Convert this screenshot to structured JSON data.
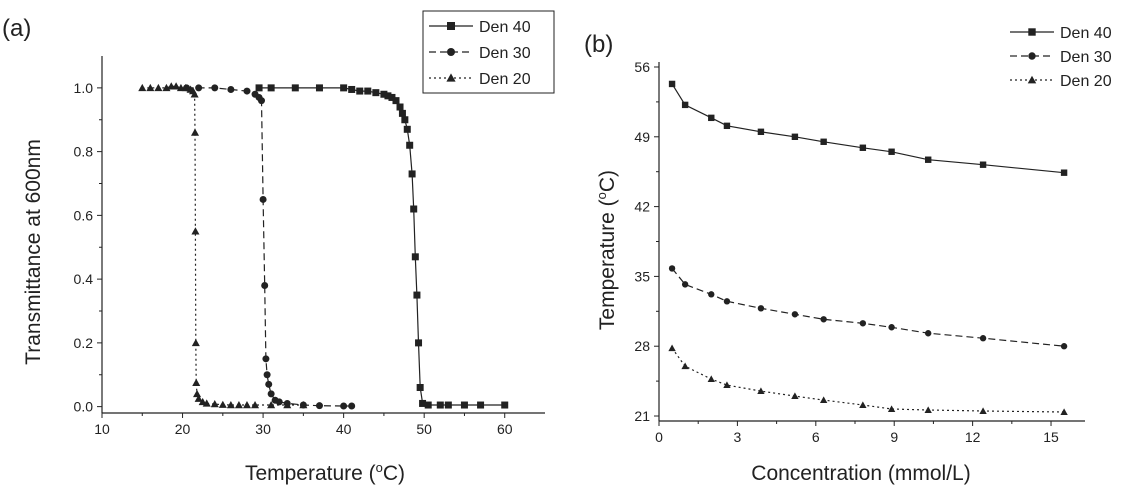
{
  "chart_data": [
    {
      "panel": "(a)",
      "type": "line",
      "xlabel": "Temperature (",
      "xlabel_sup": "o",
      "xlabel_tail": "C)",
      "ylabel": "Transmittance at 600nm",
      "xlim": [
        10,
        65
      ],
      "ylim": [
        -0.02,
        1.1
      ],
      "xticks": [
        10,
        20,
        30,
        40,
        50,
        60
      ],
      "yticks": [
        0.0,
        0.2,
        0.4,
        0.6,
        0.8,
        1.0
      ],
      "ytick_labels": [
        "0.0",
        "0.2",
        "0.4",
        "0.6",
        "0.8",
        "1.0"
      ],
      "legend_position": "top-right",
      "series": [
        {
          "name": "Den 40",
          "marker": "square",
          "dash": "solid",
          "points": [
            [
              29.5,
              1.0
            ],
            [
              31,
              1.0
            ],
            [
              34,
              1.0
            ],
            [
              37,
              1.0
            ],
            [
              40,
              1.0
            ],
            [
              41,
              0.995
            ],
            [
              42,
              0.99
            ],
            [
              43,
              0.99
            ],
            [
              44,
              0.985
            ],
            [
              45,
              0.98
            ],
            [
              45.5,
              0.975
            ],
            [
              46,
              0.97
            ],
            [
              46.5,
              0.96
            ],
            [
              47,
              0.94
            ],
            [
              47.3,
              0.92
            ],
            [
              47.6,
              0.9
            ],
            [
              47.9,
              0.87
            ],
            [
              48.2,
              0.82
            ],
            [
              48.5,
              0.73
            ],
            [
              48.7,
              0.62
            ],
            [
              48.9,
              0.47
            ],
            [
              49.1,
              0.35
            ],
            [
              49.3,
              0.2
            ],
            [
              49.5,
              0.06
            ],
            [
              49.8,
              0.01
            ],
            [
              50.5,
              0.005
            ],
            [
              52,
              0.005
            ],
            [
              53,
              0.005
            ],
            [
              55,
              0.005
            ],
            [
              57,
              0.005
            ],
            [
              60,
              0.005
            ]
          ]
        },
        {
          "name": "Den 30",
          "marker": "circle",
          "dash": "dashed",
          "points": [
            [
              20.5,
              1.0
            ],
            [
              22,
              1.0
            ],
            [
              24,
              1.0
            ],
            [
              26,
              0.995
            ],
            [
              28,
              0.99
            ],
            [
              29,
              0.98
            ],
            [
              29.5,
              0.97
            ],
            [
              29.8,
              0.96
            ],
            [
              30.0,
              0.65
            ],
            [
              30.2,
              0.38
            ],
            [
              30.35,
              0.15
            ],
            [
              30.5,
              0.1
            ],
            [
              30.7,
              0.07
            ],
            [
              31,
              0.04
            ],
            [
              31.5,
              0.02
            ],
            [
              32,
              0.015
            ],
            [
              33,
              0.01
            ],
            [
              35,
              0.005
            ],
            [
              37,
              0.003
            ],
            [
              40,
              0.002
            ],
            [
              41,
              0.002
            ]
          ]
        },
        {
          "name": "Den 20",
          "marker": "triangle",
          "dash": "dotted",
          "points": [
            [
              15,
              1.0
            ],
            [
              16,
              1.0
            ],
            [
              17,
              1.0
            ],
            [
              18,
              1.0
            ],
            [
              18.6,
              1.005
            ],
            [
              19.2,
              1.005
            ],
            [
              19.8,
              1.0
            ],
            [
              20.4,
              1.0
            ],
            [
              21.0,
              0.995
            ],
            [
              21.3,
              0.99
            ],
            [
              21.5,
              0.98
            ],
            [
              21.55,
              0.86
            ],
            [
              21.6,
              0.55
            ],
            [
              21.65,
              0.2
            ],
            [
              21.7,
              0.075
            ],
            [
              21.8,
              0.04
            ],
            [
              22,
              0.025
            ],
            [
              22.5,
              0.015
            ],
            [
              23,
              0.01
            ],
            [
              24,
              0.008
            ],
            [
              25,
              0.006
            ],
            [
              26,
              0.005
            ],
            [
              27,
              0.005
            ],
            [
              28,
              0.005
            ],
            [
              29,
              0.005
            ],
            [
              31,
              0.005
            ],
            [
              33,
              0.005
            ],
            [
              35,
              0.005
            ]
          ]
        }
      ]
    },
    {
      "panel": "(b)",
      "type": "line",
      "xlabel": "Concentration (mmol/L)",
      "ylabel": "Temperature (",
      "ylabel_sup": "o",
      "ylabel_tail": "C)",
      "xlim": [
        0,
        16.3
      ],
      "ylim": [
        20.5,
        56.5
      ],
      "xticks": [
        0,
        3,
        6,
        9,
        12,
        15
      ],
      "yticks": [
        21,
        28,
        35,
        42,
        49,
        56
      ],
      "legend_position": "top-right",
      "series": [
        {
          "name": "Den 40",
          "marker": "square",
          "dash": "solid",
          "points": [
            [
              0.5,
              54.3
            ],
            [
              1.0,
              52.2
            ],
            [
              2.0,
              50.9
            ],
            [
              2.6,
              50.1
            ],
            [
              3.9,
              49.5
            ],
            [
              5.2,
              49.0
            ],
            [
              6.3,
              48.5
            ],
            [
              7.8,
              47.9
            ],
            [
              8.9,
              47.5
            ],
            [
              10.3,
              46.7
            ],
            [
              12.4,
              46.2
            ],
            [
              15.5,
              45.4
            ]
          ]
        },
        {
          "name": "Den 30",
          "marker": "circle",
          "dash": "dashed",
          "points": [
            [
              0.5,
              35.8
            ],
            [
              1.0,
              34.2
            ],
            [
              2.0,
              33.2
            ],
            [
              2.6,
              32.5
            ],
            [
              3.9,
              31.8
            ],
            [
              5.2,
              31.2
            ],
            [
              6.3,
              30.7
            ],
            [
              7.8,
              30.3
            ],
            [
              8.9,
              29.9
            ],
            [
              10.3,
              29.3
            ],
            [
              12.4,
              28.8
            ],
            [
              15.5,
              28.0
            ]
          ]
        },
        {
          "name": "Den 20",
          "marker": "triangle",
          "dash": "dotted",
          "points": [
            [
              0.5,
              27.8
            ],
            [
              1.0,
              26.0
            ],
            [
              2.0,
              24.7
            ],
            [
              2.6,
              24.1
            ],
            [
              3.9,
              23.5
            ],
            [
              5.2,
              23.0
            ],
            [
              6.3,
              22.6
            ],
            [
              7.8,
              22.1
            ],
            [
              8.9,
              21.7
            ],
            [
              10.3,
              21.6
            ],
            [
              12.4,
              21.5
            ],
            [
              15.5,
              21.4
            ]
          ]
        }
      ]
    }
  ]
}
